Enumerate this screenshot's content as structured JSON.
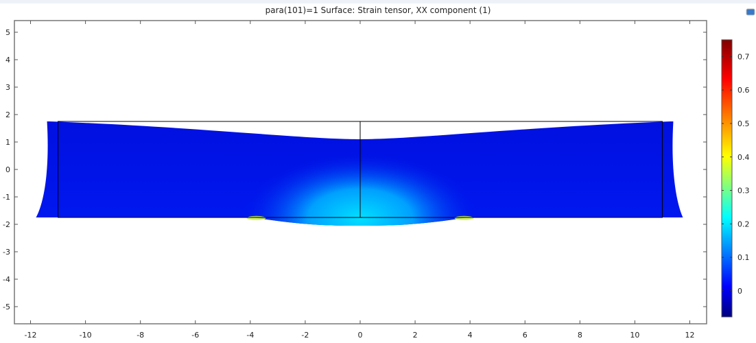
{
  "title": "para(101)=1   Surface: Strain tensor, XX component (1)",
  "chart_data": {
    "type": "heatmap",
    "title": "para(101)=1   Surface: Strain tensor, XX component (1)",
    "xlim": [
      -12.5,
      12.7
    ],
    "ylim": [
      -5.6,
      5.4
    ],
    "xticks": [
      -12,
      -10,
      -8,
      -6,
      -4,
      -2,
      0,
      2,
      4,
      6,
      8,
      10,
      12
    ],
    "yticks": [
      5,
      4,
      3,
      2,
      1,
      0,
      -1,
      -2,
      -3,
      -4,
      -5
    ],
    "undeformed_geometry": {
      "x": [
        -11,
        11
      ],
      "y": [
        -1.75,
        1.75
      ],
      "divider_x": 0
    },
    "deformed_geometry": {
      "top_corners": [
        [
          -11.3,
          1.75
        ],
        [
          11.3,
          1.75
        ]
      ],
      "top_center_y": 1.1,
      "bottom_corners": [
        [
          -11.8,
          -1.75
        ],
        [
          11.75,
          -1.75
        ]
      ],
      "bottom_bulge": {
        "x_range": [
          -3.9,
          3.9
        ],
        "min_y": -2.05
      }
    },
    "colorbar": {
      "colormap": "jet",
      "range": [
        -0.078,
        0.75
      ],
      "ticks": [
        0,
        0.1,
        0.2,
        0.3,
        0.4,
        0.5,
        0.6,
        0.7
      ]
    },
    "strain_hotspots": [
      {
        "x": -3.9,
        "y": -1.75,
        "value": 0.45
      },
      {
        "x": 3.9,
        "y": -1.75,
        "value": 0.45
      },
      {
        "x": 0,
        "y": -1.9,
        "value": 0.2
      }
    ],
    "background_value": 0
  }
}
